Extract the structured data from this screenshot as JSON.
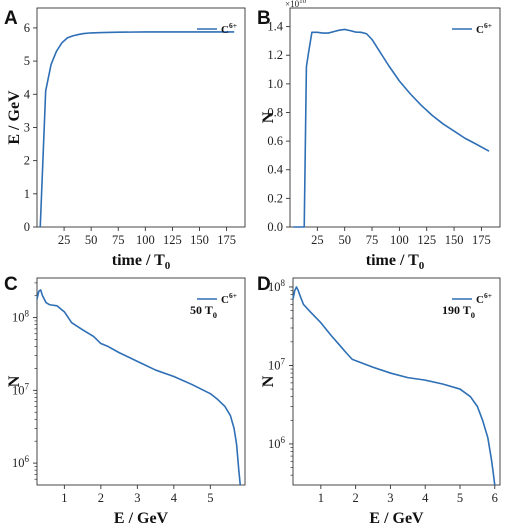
{
  "chart_data": [
    {
      "panel": "A",
      "type": "line",
      "xlabel": "time / T",
      "xlabel_sub": "0",
      "ylabel": "E / GeV",
      "xlim": [
        0,
        192
      ],
      "ylim": [
        0,
        6.6
      ],
      "xticks": [
        25,
        50,
        75,
        100,
        125,
        150,
        175
      ],
      "yticks": [
        0,
        1,
        2,
        3,
        4,
        5,
        6
      ],
      "series": [
        {
          "name": "C",
          "name_sup": "6+",
          "color": "#2e6fb5",
          "x": [
            3,
            8,
            13,
            18,
            23,
            28,
            33,
            38,
            43,
            50,
            60,
            75,
            100,
            125,
            150,
            182
          ],
          "y": [
            0,
            4.1,
            4.9,
            5.3,
            5.55,
            5.7,
            5.76,
            5.8,
            5.83,
            5.85,
            5.86,
            5.87,
            5.88,
            5.88,
            5.88,
            5.88
          ]
        }
      ]
    },
    {
      "panel": "B",
      "type": "line",
      "xlabel": "time / T",
      "xlabel_sub": "0",
      "ylabel": "N",
      "scale_label_base": "×10",
      "scale_label_exp": "10",
      "xlim": [
        0,
        192
      ],
      "ylim": [
        0,
        1.53
      ],
      "xticks": [
        25,
        50,
        75,
        100,
        125,
        150,
        175
      ],
      "yticks": [
        0.0,
        0.2,
        0.4,
        0.6,
        0.8,
        1.0,
        1.2,
        1.4
      ],
      "ytick_labels": [
        "0.0",
        "0.2",
        "0.4",
        "0.6",
        "0.8",
        "1.0",
        "1.2",
        "1.4"
      ],
      "series": [
        {
          "name": "C",
          "name_sup": "6+",
          "color": "#2e6fb5",
          "x": [
            3,
            13,
            15,
            17,
            20,
            25,
            30,
            35,
            40,
            45,
            50,
            55,
            60,
            65,
            70,
            75,
            80,
            90,
            100,
            110,
            120,
            130,
            140,
            150,
            160,
            170,
            182
          ],
          "y": [
            0,
            0,
            1.12,
            1.22,
            1.36,
            1.36,
            1.355,
            1.355,
            1.365,
            1.375,
            1.38,
            1.372,
            1.362,
            1.36,
            1.35,
            1.31,
            1.25,
            1.13,
            1.02,
            0.93,
            0.85,
            0.78,
            0.72,
            0.67,
            0.62,
            0.58,
            0.53
          ]
        }
      ]
    },
    {
      "panel": "C",
      "type": "line",
      "xlabel": "E / GeV",
      "ylabel": "N",
      "yscale": "log",
      "annotation_main": "50 T",
      "annotation_sub": "0",
      "xlim": [
        0.25,
        5.95
      ],
      "ylim": [
        500000,
        350000000
      ],
      "xticks": [
        1,
        2,
        3,
        4,
        5
      ],
      "yticks_log": [
        6,
        7,
        8
      ],
      "series": [
        {
          "name": "C",
          "name_sup": "6+",
          "color": "#2e6fb5",
          "x": [
            0.25,
            0.3,
            0.35,
            0.4,
            0.5,
            0.6,
            0.8,
            1.0,
            1.2,
            1.5,
            1.8,
            2.0,
            2.2,
            2.5,
            3.0,
            3.5,
            4.0,
            4.5,
            5.0,
            5.2,
            5.4,
            5.55,
            5.65,
            5.72,
            5.75,
            5.78,
            5.82
          ],
          "y": [
            180000000,
            230000000,
            240000000,
            200000000,
            160000000,
            150000000,
            145000000,
            120000000,
            85000000,
            68000000,
            55000000,
            44000000,
            40000000,
            33000000,
            25000000,
            19000000,
            15500000,
            12000000,
            9000000,
            7500000,
            6000000,
            4500000,
            3000000,
            1800000,
            1200000,
            800000,
            500000
          ]
        }
      ]
    },
    {
      "panel": "D",
      "type": "line",
      "xlabel": "E / GeV",
      "ylabel": "N",
      "yscale": "log",
      "annotation_main": "190 T",
      "annotation_sub": "0",
      "xlim": [
        0.2,
        6.15
      ],
      "ylim": [
        300000,
        130000000
      ],
      "xticks": [
        1,
        2,
        3,
        4,
        5,
        6
      ],
      "yticks_log": [
        6,
        7,
        8
      ],
      "series": [
        {
          "name": "C",
          "name_sup": "6+",
          "color": "#2e6fb5",
          "x": [
            0.2,
            0.25,
            0.3,
            0.35,
            0.4,
            0.5,
            0.7,
            1.0,
            1.3,
            1.5,
            1.7,
            1.9,
            2.0,
            2.5,
            3.0,
            3.5,
            4.0,
            4.5,
            5.0,
            5.3,
            5.5,
            5.65,
            5.8,
            5.9,
            5.95,
            6.0
          ],
          "y": [
            70000000,
            90000000,
            100000000,
            90000000,
            78000000,
            60000000,
            48000000,
            35000000,
            24000000,
            19000000,
            15000000,
            12000000,
            11500000,
            9500000,
            8000000,
            7000000,
            6500000,
            5800000,
            5000000,
            4000000,
            3000000,
            2000000,
            1200000,
            650000,
            450000,
            300000
          ]
        }
      ]
    }
  ],
  "figure": {
    "panel_letters": [
      "A",
      "B",
      "C",
      "D"
    ],
    "line_color": "#2e6fb5"
  }
}
